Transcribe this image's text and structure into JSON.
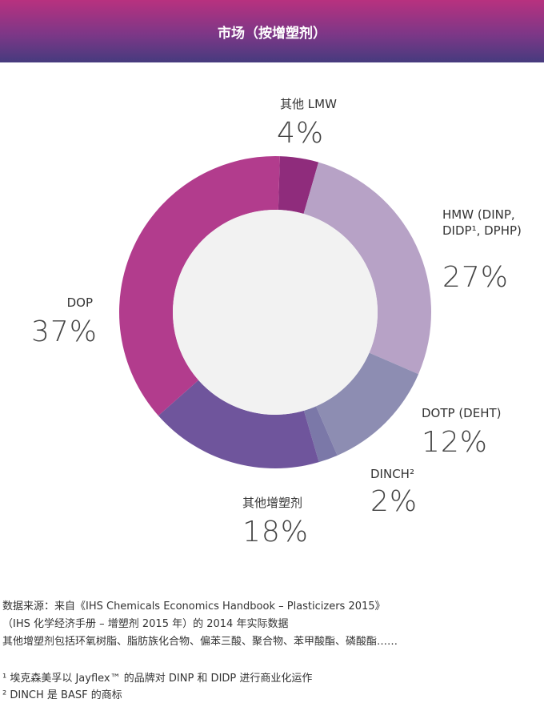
{
  "chart_data": {
    "type": "donut",
    "title": "市场（按增塑剂）",
    "categories": [
      "其他 LMW",
      "HMW (DINP, DIDP¹, DPHP)",
      "DOTP (DEHT)",
      "DINCH²",
      "其他增塑剂",
      "DOP"
    ],
    "values": [
      4,
      27,
      12,
      2,
      18,
      37
    ],
    "value_labels": [
      "4%",
      "27%",
      "12%",
      "2%",
      "18%",
      "37%"
    ],
    "colors": [
      "#8f2c7c",
      "#b7a2c6",
      "#8d8db2",
      "#7b78a8",
      "#6f559c",
      "#b23c8d"
    ]
  },
  "notes": {
    "source": [
      "数据来源：来自《IHS Chemicals Economics Handbook – Plasticizers 2015》",
      "（IHS 化学经济手册 – 增塑剂 2015 年）的 2014 年实际数据",
      "其他增塑剂包括环氧树脂、脂肪族化合物、偏苯三酸、聚合物、苯甲酸酯、磷酸酯……"
    ],
    "footnotes": [
      "¹ 埃克森美孚以 Jayflex™ 的品牌对 DINP 和 DIDP 进行商业化运作",
      "² DINCH 是 BASF 的商标"
    ]
  }
}
